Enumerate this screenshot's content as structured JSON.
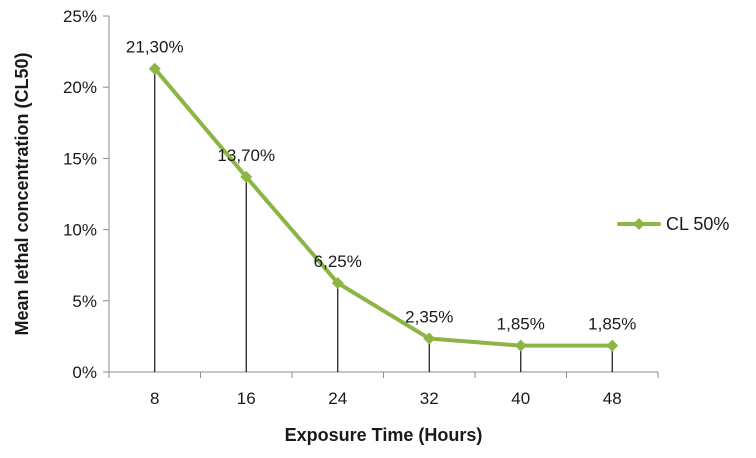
{
  "chart_data": {
    "type": "line",
    "title": "",
    "xlabel": "Exposure Time (Hours)",
    "ylabel": "Mean lethal concentration (CL50)",
    "categories": [
      "8",
      "16",
      "24",
      "32",
      "40",
      "48"
    ],
    "series": [
      {
        "name": "CL 50%",
        "values": [
          21.3,
          13.7,
          6.25,
          2.35,
          1.85,
          1.85
        ],
        "labels": [
          "21,30%",
          "13,70%",
          "6,25%",
          "2,35%",
          "1,85%",
          "1,85%"
        ],
        "color": "#8db543"
      }
    ],
    "ylim": [
      0,
      25
    ],
    "yticks": [
      0,
      5,
      10,
      15,
      20,
      25
    ],
    "ytick_labels": [
      "0%",
      "5%",
      "10%",
      "15%",
      "20%",
      "25%"
    ],
    "drop_lines": true,
    "marker": "diamond",
    "grid": false,
    "legend_position": "right"
  }
}
